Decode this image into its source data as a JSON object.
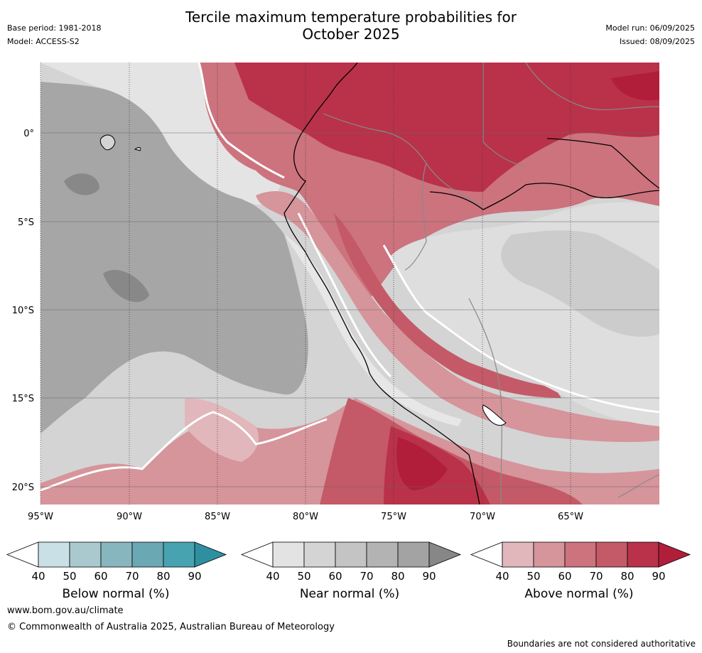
{
  "header": {
    "title_line1": "Tercile maximum temperature probabilities for",
    "title_line2": "October 2025",
    "base_period": "Base period: 1981-2018",
    "model": "Model: ACCESS-S2",
    "model_run": "Model run: 06/09/2025",
    "issued": "Issued: 08/09/2025"
  },
  "map": {
    "lon_labels": [
      "95°W",
      "90°W",
      "85°W",
      "80°W",
      "75°W",
      "70°W",
      "65°W"
    ],
    "lat_labels": [
      "0°",
      "5°S",
      "10°S",
      "15°S",
      "20°S"
    ]
  },
  "colorbars": [
    {
      "label": "Below normal (%)",
      "ticks": [
        "40",
        "50",
        "60",
        "70",
        "80",
        "90"
      ],
      "colors": [
        "#ffffff",
        "#c9e1e6",
        "#a9c9cf",
        "#88b6bf",
        "#6aa8b3",
        "#48a3b1",
        "#2e8fa1"
      ]
    },
    {
      "label": "Near normal (%)",
      "ticks": [
        "40",
        "50",
        "60",
        "70",
        "80",
        "90"
      ],
      "colors": [
        "#ffffff",
        "#e3e3e3",
        "#d4d4d4",
        "#c4c4c4",
        "#b3b3b3",
        "#a3a3a3",
        "#878787"
      ]
    },
    {
      "label": "Above normal (%)",
      "ticks": [
        "40",
        "50",
        "60",
        "70",
        "80",
        "90"
      ],
      "colors": [
        "#ffffff",
        "#e1b7bb",
        "#d6949b",
        "#cc737e",
        "#c45a67",
        "#b9324a",
        "#b11e3a"
      ]
    }
  ],
  "footer": {
    "url": "www.bom.gov.au/climate",
    "copyright": "© Commonwealth of Australia 2025, Australian Bureau of Meteorology",
    "note": "Boundaries are not considered authoritative"
  }
}
